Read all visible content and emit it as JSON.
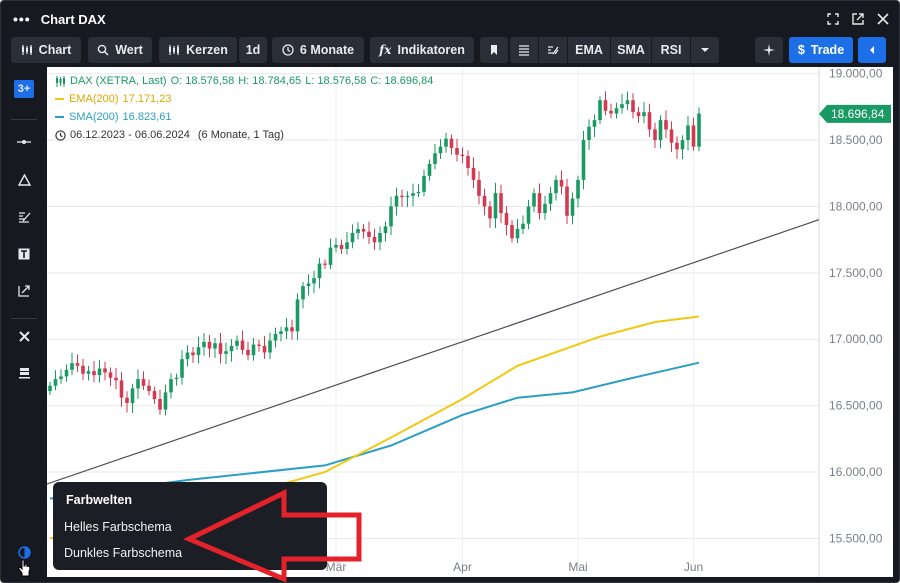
{
  "window": {
    "title": "Chart DAX"
  },
  "toolbar": {
    "chart_label": "Chart",
    "value_label": "Wert",
    "candles_label": "Kerzen",
    "interval_label": "1d",
    "range_label": "6 Monate",
    "indicators_label": "Indikatoren",
    "ema_label": "EMA",
    "sma_label": "SMA",
    "rsi_label": "RSI",
    "trade_label": "Trade"
  },
  "leftbar": {
    "logo_text": "3+"
  },
  "legend": {
    "instrument": "DAX (XETRA, Last)",
    "open": "O: 18.576,58",
    "high": "H: 18.784,65",
    "low": "L: 18.576,58",
    "close": "C: 18.696,84",
    "ema": "EMA(200)",
    "ema_value": "17.171,23",
    "sma": "SMA(200)",
    "sma_value": "16.823,61",
    "period": "06.12.2023 - 06.06.2024",
    "period_detail": "(6 Monate, 1 Tag)"
  },
  "colors": {
    "up": "#1a9a63",
    "down": "#d23a52",
    "ema": "#f2c811",
    "sma": "#2a9fc3",
    "accent": "#1c6fe6",
    "arrow": "#e4222b"
  },
  "chart_data": {
    "type": "candlestick",
    "x_ticks": [
      "Mär",
      "Apr",
      "Mai",
      "Jun"
    ],
    "y_ticks": [
      "19.000,00",
      "18.500,00",
      "18.000,00",
      "17.500,00",
      "17.000,00",
      "16.500,00",
      "16.000,00",
      "15.500,00"
    ],
    "ylim": [
      15300,
      19050
    ],
    "last_price_label": "18.696,84",
    "last_price": 18696.84,
    "closes": [
      16650,
      16700,
      16720,
      16770,
      16820,
      16800,
      16740,
      16760,
      16730,
      16780,
      16750,
      16710,
      16690,
      16560,
      16520,
      16630,
      16700,
      16650,
      16610,
      16550,
      16470,
      16600,
      16700,
      16710,
      16850,
      16900,
      16880,
      16940,
      16980,
      16930,
      16970,
      16890,
      16910,
      16950,
      16990,
      16920,
      16880,
      16960,
      16950,
      16900,
      16990,
      17040,
      17060,
      17090,
      17060,
      17300,
      17400,
      17420,
      17460,
      17570,
      17560,
      17690,
      17710,
      17680,
      17730,
      17800,
      17830,
      17810,
      17770,
      17730,
      17800,
      17850,
      18000,
      18080,
      18070,
      18080,
      18100,
      18110,
      18230,
      18320,
      18400,
      18450,
      18510,
      18440,
      18390,
      18380,
      18290,
      18200,
      18080,
      18000,
      17910,
      18100,
      17950,
      17860,
      17760,
      17830,
      17870,
      18000,
      18100,
      17950,
      18020,
      18100,
      18200,
      18150,
      17930,
      18060,
      18200,
      18500,
      18600,
      18650,
      18800,
      18720,
      18700,
      18740,
      18770,
      18800,
      18710,
      18680,
      18710,
      18580,
      18500,
      18650,
      18580,
      18480,
      18430,
      18500,
      18610,
      18450,
      18700
    ],
    "ema200": [
      [
        0,
        15500
      ],
      [
        20,
        15650
      ],
      [
        50,
        16000
      ],
      [
        62,
        16260
      ],
      [
        75,
        16550
      ],
      [
        85,
        16800
      ],
      [
        100,
        17020
      ],
      [
        110,
        17130
      ],
      [
        118,
        17171
      ]
    ],
    "sma200": [
      [
        0,
        15800
      ],
      [
        25,
        15940
      ],
      [
        50,
        16050
      ],
      [
        62,
        16200
      ],
      [
        75,
        16430
      ],
      [
        85,
        16560
      ],
      [
        95,
        16600
      ],
      [
        105,
        16700
      ],
      [
        118,
        16823
      ]
    ],
    "trendline": [
      [
        15910,
        0
      ],
      [
        17900,
        1
      ]
    ]
  },
  "popup": {
    "heading": "Farbwelten",
    "light": "Helles Farbschema",
    "dark": "Dunkles Farbschema"
  }
}
